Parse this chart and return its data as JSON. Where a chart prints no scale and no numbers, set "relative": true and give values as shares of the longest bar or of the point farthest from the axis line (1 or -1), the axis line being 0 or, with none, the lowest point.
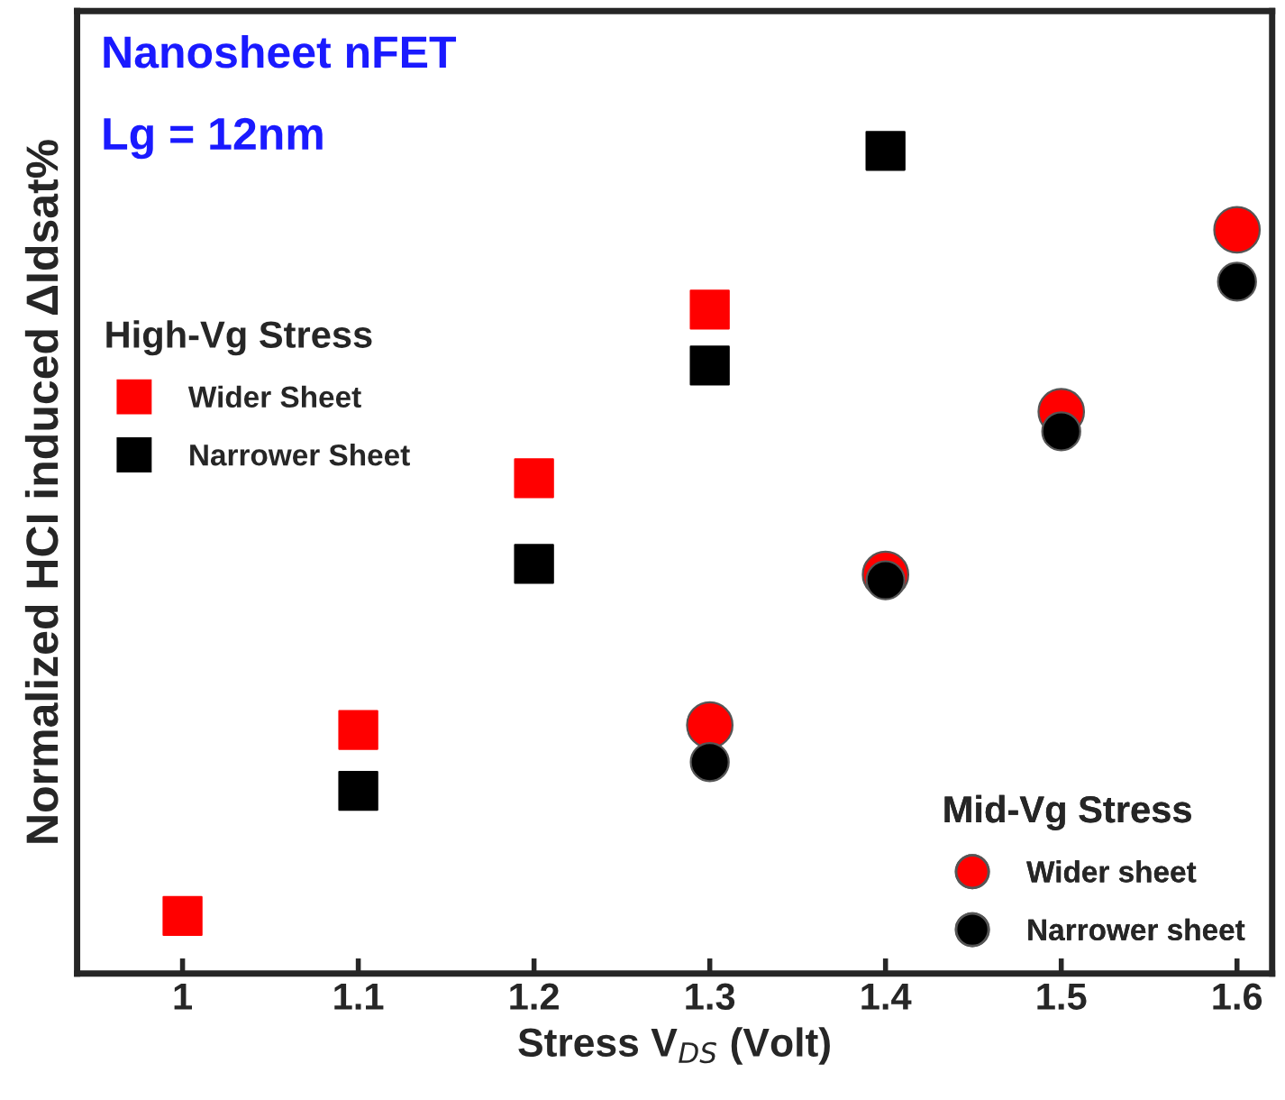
{
  "chart_data": {
    "type": "scatter",
    "relative": true,
    "xlabel": "Stress V$_{DS}$ (Volt)",
    "ylabel": "Normalized HCI induced ΔIdsat%",
    "annotations": [
      "Nanosheet nFET",
      "Lg = 12nm",
      "High-Vg Stress",
      "Mid-Vg Stress"
    ],
    "xlim": [
      0.94,
      1.62
    ],
    "xticks": [
      {
        "value": 1,
        "label": "1"
      },
      1.1,
      1.2,
      1.3,
      1.4,
      1.5,
      1.6
    ],
    "legend": "left",
    "grid": false,
    "series": [
      {
        "name": "Wider Sheet",
        "color": "#ff0000",
        "marker": "square",
        "x": [
          1.0,
          1.1,
          1.2,
          1.3
        ],
        "values": [
          0.07,
          0.296,
          0.602,
          0.807
        ]
      },
      {
        "name": "Narrower Sheet",
        "color": "#000000",
        "marker": "square",
        "x": [
          1.1,
          1.2,
          1.3,
          1.4
        ],
        "values": [
          0.222,
          0.498,
          0.739,
          1.0
        ]
      },
      {
        "name": "Wider sheet",
        "color": "#ff0000",
        "marker": "circle",
        "x": [
          1.3,
          1.4,
          1.5,
          1.6
        ],
        "values": [
          0.302,
          0.485,
          0.683,
          0.904
        ]
      },
      {
        "name": "Narrower sheet",
        "color": "#000000",
        "marker": "circle",
        "x": [
          1.3,
          1.4,
          1.5,
          1.6
        ],
        "values": [
          0.257,
          0.478,
          0.659,
          0.841
        ]
      }
    ]
  }
}
